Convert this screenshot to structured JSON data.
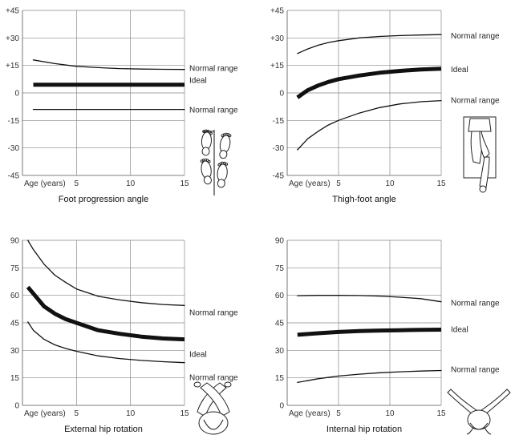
{
  "chart_data": [
    {
      "type": "line",
      "title": "Foot progression angle",
      "xlabel": "Age (years)",
      "xlim": [
        0,
        15
      ],
      "ylim": [
        -45,
        45
      ],
      "x_ticks": [
        "5",
        "10",
        "15"
      ],
      "y_ticks": [
        "+45",
        "+30",
        "+15",
        "0",
        "-15",
        "-30",
        "-45"
      ],
      "icon": "feet-footprints-icon",
      "series": [
        {
          "name": "Normal range",
          "role": "normal",
          "x": [
            1,
            3,
            5,
            7,
            9,
            11,
            13,
            15
          ],
          "y": [
            18,
            16,
            14.5,
            13.8,
            13.3,
            13,
            12.9,
            12.8
          ]
        },
        {
          "name": "Ideal",
          "role": "ideal",
          "x": [
            1,
            15
          ],
          "y": [
            4.5,
            4.5
          ]
        },
        {
          "name": "Normal range",
          "role": "normal",
          "x": [
            1,
            15
          ],
          "y": [
            -9,
            -9
          ]
        }
      ]
    },
    {
      "type": "line",
      "title": "Thigh-foot angle",
      "xlabel": "Age (years)",
      "xlim": [
        0,
        15
      ],
      "ylim": [
        -45,
        45
      ],
      "x_ticks": [
        "5",
        "10",
        "15"
      ],
      "y_ticks": [
        "+45",
        "+30",
        "+15",
        "0",
        "-15",
        "-30",
        "-45"
      ],
      "icon": "leg-prone-icon",
      "series": [
        {
          "name": "Normal range",
          "role": "normal",
          "x": [
            1,
            2,
            3,
            4,
            5,
            7,
            9,
            11,
            13,
            15
          ],
          "y": [
            21.5,
            24,
            26,
            27.5,
            28.5,
            30,
            30.8,
            31.3,
            31.6,
            31.8
          ]
        },
        {
          "name": "Ideal",
          "role": "ideal",
          "x": [
            1,
            2,
            3,
            4,
            5,
            7,
            9,
            11,
            13,
            15
          ],
          "y": [
            -2.5,
            1.5,
            4,
            6,
            7.5,
            9.5,
            11,
            12,
            12.8,
            13.2
          ]
        },
        {
          "name": "Normal range",
          "role": "normal",
          "x": [
            1,
            2,
            3,
            4,
            5,
            7,
            9,
            11,
            13,
            15
          ],
          "y": [
            -31,
            -25,
            -21,
            -17.5,
            -15,
            -11,
            -8,
            -6,
            -4.8,
            -4.2
          ]
        }
      ]
    },
    {
      "type": "line",
      "title": "External hip rotation",
      "xlabel": "Age (years)",
      "xlim": [
        0,
        15
      ],
      "ylim": [
        0,
        90
      ],
      "x_ticks": [
        "5",
        "10",
        "15"
      ],
      "y_ticks": [
        "90",
        "75",
        "60",
        "45",
        "30",
        "15",
        "0"
      ],
      "icon": "crossed-legs-icon",
      "series": [
        {
          "name": "Normal range",
          "role": "normal",
          "x": [
            0.5,
            1,
            2,
            3,
            4,
            5,
            7,
            9,
            11,
            13,
            15
          ],
          "y": [
            90,
            85,
            77,
            71,
            67,
            63.5,
            59.5,
            57.5,
            56,
            55,
            54.5
          ]
        },
        {
          "name": "Ideal",
          "role": "ideal",
          "x": [
            0.5,
            1,
            2,
            3,
            4,
            5,
            7,
            9,
            11,
            13,
            15
          ],
          "y": [
            64.5,
            61,
            54,
            50,
            47,
            45,
            41,
            39,
            37.5,
            36.5,
            36
          ]
        },
        {
          "name": "Normal range",
          "role": "normal",
          "x": [
            0.5,
            1,
            2,
            3,
            4,
            5,
            7,
            9,
            11,
            13,
            15
          ],
          "y": [
            45.5,
            41,
            36,
            33,
            31,
            29.5,
            27,
            25.5,
            24.5,
            23.8,
            23.3
          ]
        }
      ]
    },
    {
      "type": "line",
      "title": "Internal hip rotation",
      "xlabel": "Age (years)",
      "xlim": [
        0,
        15
      ],
      "ylim": [
        0,
        90
      ],
      "x_ticks": [
        "5",
        "10",
        "15"
      ],
      "y_ticks": [
        "90",
        "75",
        "60",
        "45",
        "30",
        "15",
        "0"
      ],
      "icon": "spread-legs-icon",
      "series": [
        {
          "name": "Normal range",
          "role": "normal",
          "x": [
            1,
            3,
            5,
            7,
            9,
            11,
            13,
            15
          ],
          "y": [
            59.8,
            60,
            60,
            59.9,
            59.6,
            59,
            58.2,
            56.5
          ]
        },
        {
          "name": "Ideal",
          "role": "ideal",
          "x": [
            1,
            3,
            5,
            7,
            9,
            11,
            13,
            15
          ],
          "y": [
            38.5,
            39.3,
            40,
            40.5,
            40.8,
            41,
            41.2,
            41.3
          ]
        },
        {
          "name": "Normal range",
          "role": "normal",
          "x": [
            1,
            3,
            5,
            7,
            9,
            11,
            13,
            15
          ],
          "y": [
            12.5,
            14.5,
            16,
            17,
            17.8,
            18.3,
            18.7,
            19
          ]
        }
      ]
    }
  ]
}
